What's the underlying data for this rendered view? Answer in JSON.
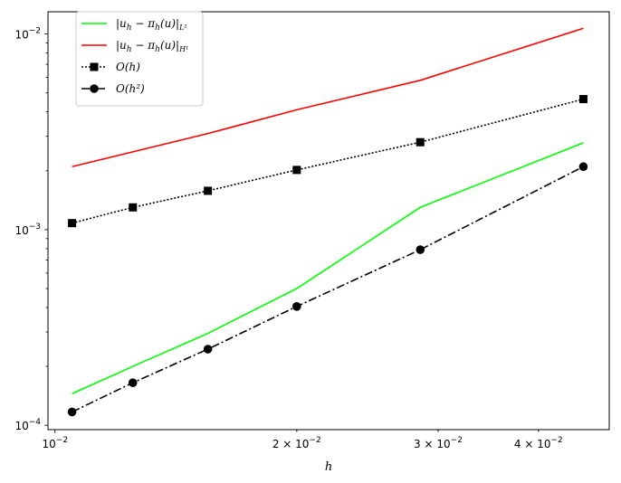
{
  "chart_data": {
    "type": "line",
    "xscale": "log",
    "yscale": "log",
    "xlim": [
      0.0098,
      0.049
    ],
    "ylim": [
      9.5e-05,
      0.013
    ],
    "xlabel": "h",
    "ylabel": "",
    "grid": false,
    "legend_position": "top-left",
    "x": [
      0.0105,
      0.0125,
      0.0155,
      0.02,
      0.0285,
      0.0455
    ],
    "series": [
      {
        "name": "|u_h − π_h(u)|_{L²}",
        "label_main": "|u",
        "label_parts": [
          "h",
          " − π",
          "h",
          "(u)|",
          "L²"
        ],
        "color": "#00ff00",
        "linestyle": "solid",
        "marker": "none",
        "values": [
          0.000145,
          0.0002,
          0.000295,
          0.0005,
          0.0013,
          0.00278
        ]
      },
      {
        "name": "|u_h − π_h(u)|_{H¹}",
        "label_parts": [
          "h",
          " − π",
          "h",
          "(u)|",
          "H¹"
        ],
        "color": "#ff0000",
        "linestyle": "solid",
        "marker": "none",
        "values": [
          0.0021,
          0.0025,
          0.0031,
          0.0041,
          0.0058,
          0.0107
        ]
      },
      {
        "name": "O(h)",
        "color": "#000000",
        "linestyle": "dotted",
        "marker": "square",
        "values": [
          0.00108,
          0.0013,
          0.00158,
          0.00202,
          0.0028,
          0.00465
        ]
      },
      {
        "name": "O(h²)",
        "color": "#000000",
        "linestyle": "dashdot",
        "marker": "circle",
        "values": [
          0.000117,
          0.000165,
          0.000245,
          0.000405,
          0.00079,
          0.0021
        ]
      }
    ],
    "x_ticks": [
      {
        "value": 0.01,
        "base": "10",
        "exp": "−2",
        "mantissa": ""
      },
      {
        "value": 0.02,
        "base": "10",
        "exp": "−2",
        "mantissa": "2 × "
      },
      {
        "value": 0.03,
        "base": "10",
        "exp": "−2",
        "mantissa": "3 × "
      },
      {
        "value": 0.04,
        "base": "10",
        "exp": "−2",
        "mantissa": "4 × "
      }
    ],
    "y_ticks": [
      {
        "value": 0.0001,
        "base": "10",
        "exp": "−4"
      },
      {
        "value": 0.001,
        "base": "10",
        "exp": "−3"
      },
      {
        "value": 0.01,
        "base": "10",
        "exp": "−2"
      }
    ]
  }
}
